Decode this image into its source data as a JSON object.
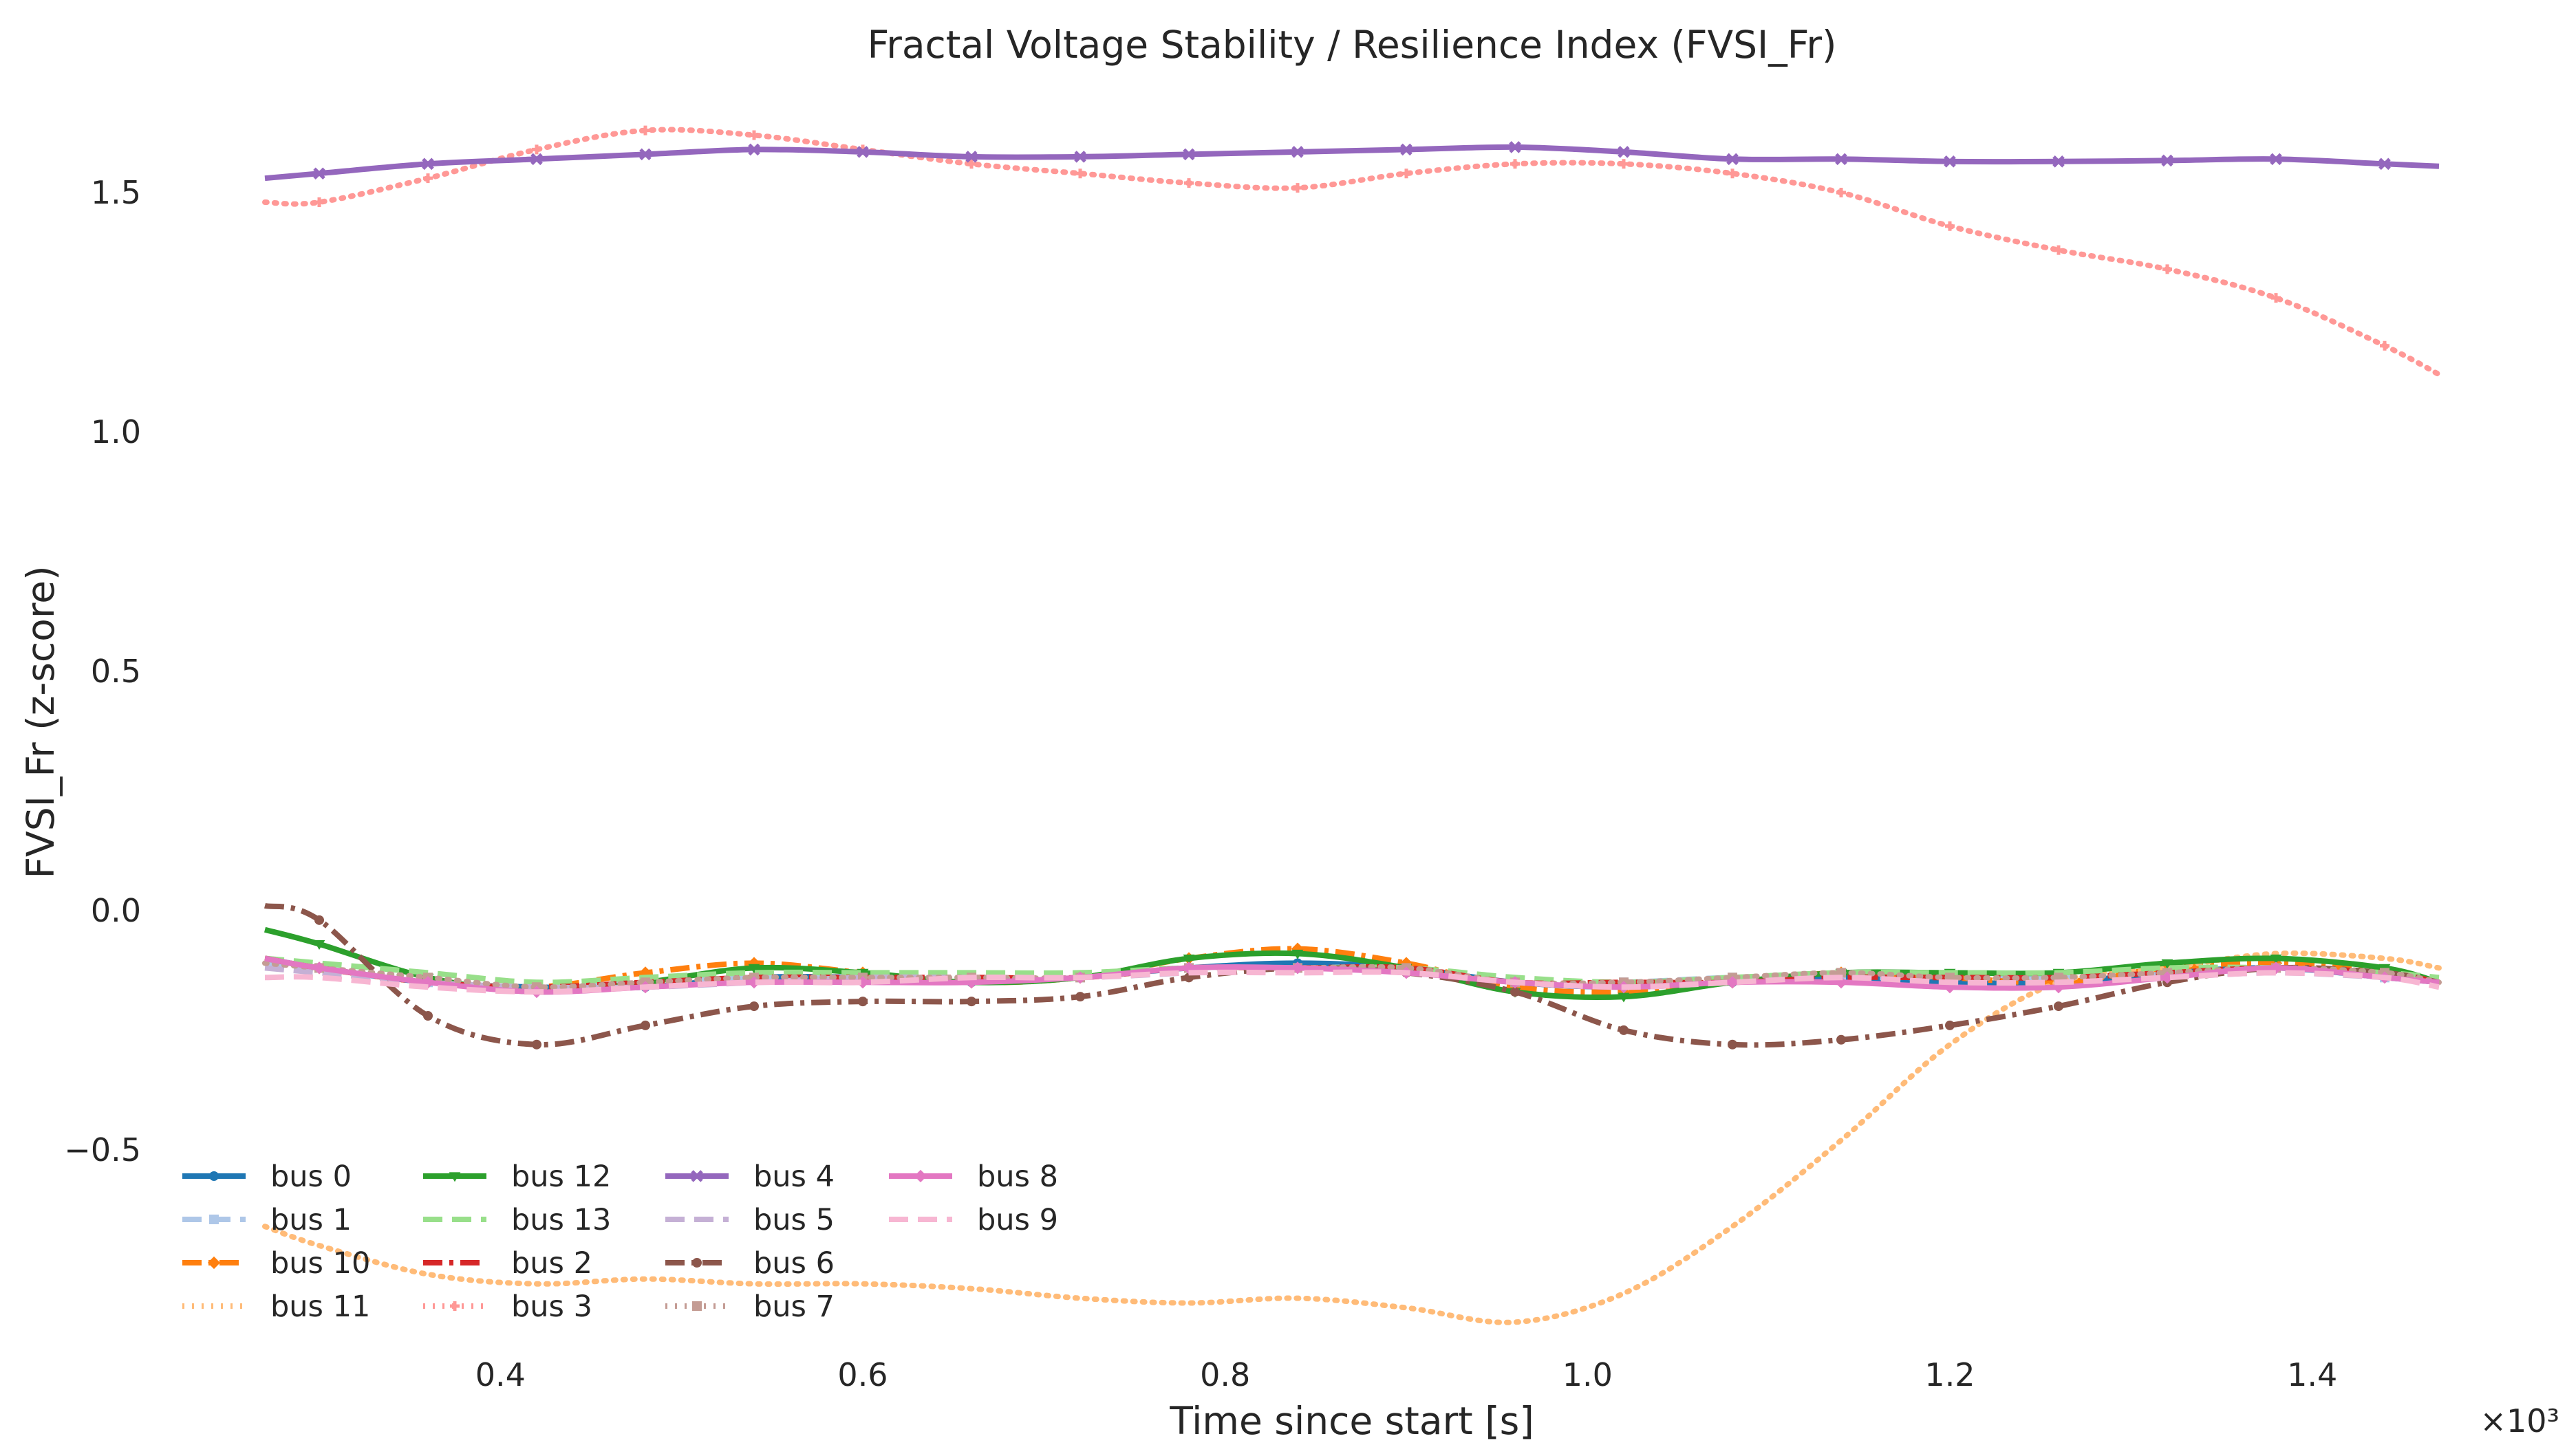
{
  "chart_data": {
    "type": "line",
    "title": "Fractal Voltage Stability / Resilience Index (FVSI_Fr)",
    "xlabel": "Time since start [s]",
    "ylabel": "FVSI_Fr (z-score)",
    "x_offset_label": "×10³",
    "x_scale_factor": 1000,
    "xlim": [
      0.27,
      1.47
    ],
    "ylim": [
      -0.95,
      1.73
    ],
    "x_ticks": [
      0.4,
      0.6,
      0.8,
      1.0,
      1.2,
      1.4
    ],
    "x_tick_labels": [
      "0.4",
      "0.6",
      "0.8",
      "1.0",
      "1.2",
      "1.4"
    ],
    "y_ticks": [
      -0.5,
      0.0,
      0.5,
      1.0,
      1.5
    ],
    "y_tick_labels": [
      "−0.5",
      "0.0",
      "0.5",
      "1.0",
      "1.5"
    ],
    "grid": false,
    "legend_position": "lower-left",
    "x": [
      0.27,
      0.3,
      0.36,
      0.42,
      0.48,
      0.54,
      0.6,
      0.66,
      0.72,
      0.78,
      0.84,
      0.9,
      0.96,
      1.02,
      1.08,
      1.14,
      1.2,
      1.26,
      1.32,
      1.38,
      1.44,
      1.47
    ],
    "series": [
      {
        "name": "bus 0",
        "color": "#1f77b4",
        "dash": "",
        "width": 8,
        "marker": "circle",
        "values": [
          -0.1,
          -0.12,
          -0.15,
          -0.16,
          -0.16,
          -0.14,
          -0.14,
          -0.15,
          -0.14,
          -0.12,
          -0.11,
          -0.12,
          -0.15,
          -0.16,
          -0.15,
          -0.14,
          -0.15,
          -0.15,
          -0.13,
          -0.12,
          -0.14,
          -0.15
        ]
      },
      {
        "name": "bus 1",
        "color": "#aec7e8",
        "dash": "28,14",
        "width": 8,
        "marker": "square",
        "values": [
          -0.11,
          -0.12,
          -0.15,
          -0.16,
          -0.15,
          -0.14,
          -0.14,
          -0.14,
          -0.14,
          -0.12,
          -0.12,
          -0.12,
          -0.15,
          -0.15,
          -0.14,
          -0.14,
          -0.14,
          -0.14,
          -0.13,
          -0.12,
          -0.14,
          -0.15
        ]
      },
      {
        "name": "bus 10",
        "color": "#ff7f0e",
        "dash": "28,10,6,10",
        "width": 8,
        "marker": "diamond",
        "values": [
          -0.1,
          -0.12,
          -0.15,
          -0.16,
          -0.13,
          -0.11,
          -0.13,
          -0.15,
          -0.14,
          -0.1,
          -0.08,
          -0.11,
          -0.16,
          -0.17,
          -0.15,
          -0.13,
          -0.14,
          -0.15,
          -0.12,
          -0.11,
          -0.13,
          -0.15
        ]
      },
      {
        "name": "bus 11",
        "color": "#ffbb78",
        "dash": "3,11",
        "width": 8,
        "marker": "none",
        "values": [
          -0.66,
          -0.7,
          -0.76,
          -0.78,
          -0.77,
          -0.78,
          -0.78,
          -0.79,
          -0.81,
          -0.82,
          -0.81,
          -0.83,
          -0.86,
          -0.8,
          -0.66,
          -0.48,
          -0.28,
          -0.15,
          -0.12,
          -0.09,
          -0.1,
          -0.12
        ]
      },
      {
        "name": "bus 12",
        "color": "#2ca02c",
        "dash": "",
        "width": 8,
        "marker": "triangle",
        "values": [
          -0.04,
          -0.07,
          -0.14,
          -0.17,
          -0.15,
          -0.12,
          -0.13,
          -0.15,
          -0.14,
          -0.1,
          -0.09,
          -0.12,
          -0.17,
          -0.18,
          -0.15,
          -0.13,
          -0.13,
          -0.13,
          -0.11,
          -0.1,
          -0.12,
          -0.15
        ]
      },
      {
        "name": "bus 13",
        "color": "#98df8a",
        "dash": "28,14",
        "width": 8,
        "marker": "none",
        "values": [
          -0.1,
          -0.11,
          -0.13,
          -0.15,
          -0.14,
          -0.13,
          -0.13,
          -0.13,
          -0.13,
          -0.12,
          -0.12,
          -0.12,
          -0.14,
          -0.15,
          -0.14,
          -0.13,
          -0.13,
          -0.13,
          -0.12,
          -0.12,
          -0.13,
          -0.14
        ]
      },
      {
        "name": "bus 2",
        "color": "#d62728",
        "dash": "28,10,6,10",
        "width": 8,
        "marker": "none",
        "values": [
          -0.1,
          -0.12,
          -0.15,
          -0.16,
          -0.15,
          -0.14,
          -0.14,
          -0.14,
          -0.14,
          -0.12,
          -0.12,
          -0.12,
          -0.15,
          -0.15,
          -0.15,
          -0.14,
          -0.14,
          -0.14,
          -0.13,
          -0.12,
          -0.13,
          -0.15
        ]
      },
      {
        "name": "bus 3",
        "color": "#ff9896",
        "dash": "3,11",
        "width": 8,
        "marker": "plus",
        "values": [
          1.48,
          1.48,
          1.53,
          1.59,
          1.63,
          1.62,
          1.59,
          1.56,
          1.54,
          1.52,
          1.51,
          1.54,
          1.56,
          1.56,
          1.54,
          1.5,
          1.43,
          1.38,
          1.34,
          1.28,
          1.18,
          1.12
        ]
      },
      {
        "name": "bus 4",
        "color": "#9467bd",
        "dash": "",
        "width": 8,
        "marker": "x",
        "values": [
          1.53,
          1.54,
          1.56,
          1.57,
          1.58,
          1.59,
          1.585,
          1.575,
          1.575,
          1.58,
          1.585,
          1.59,
          1.595,
          1.585,
          1.57,
          1.57,
          1.565,
          1.565,
          1.567,
          1.57,
          1.56,
          1.555
        ]
      },
      {
        "name": "bus 5",
        "color": "#c5b0d5",
        "dash": "28,14",
        "width": 8,
        "marker": "none",
        "values": [
          -0.12,
          -0.13,
          -0.15,
          -0.16,
          -0.16,
          -0.15,
          -0.14,
          -0.14,
          -0.14,
          -0.13,
          -0.12,
          -0.13,
          -0.15,
          -0.16,
          -0.15,
          -0.14,
          -0.15,
          -0.15,
          -0.14,
          -0.13,
          -0.14,
          -0.15
        ]
      },
      {
        "name": "bus 6",
        "color": "#8c564b",
        "dash": "28,10,6,10",
        "width": 8,
        "marker": "circle",
        "values": [
          0.01,
          -0.02,
          -0.22,
          -0.28,
          -0.24,
          -0.2,
          -0.19,
          -0.19,
          -0.18,
          -0.14,
          -0.12,
          -0.13,
          -0.17,
          -0.25,
          -0.28,
          -0.27,
          -0.24,
          -0.2,
          -0.15,
          -0.12,
          -0.13,
          -0.15
        ]
      },
      {
        "name": "bus 7",
        "color": "#c49c94",
        "dash": "3,11",
        "width": 8,
        "marker": "square",
        "values": [
          -0.11,
          -0.12,
          -0.14,
          -0.16,
          -0.15,
          -0.14,
          -0.14,
          -0.14,
          -0.14,
          -0.12,
          -0.12,
          -0.12,
          -0.15,
          -0.15,
          -0.14,
          -0.13,
          -0.14,
          -0.14,
          -0.13,
          -0.12,
          -0.13,
          -0.15
        ]
      },
      {
        "name": "bus 8",
        "color": "#e377c2",
        "dash": "",
        "width": 8,
        "marker": "diamond",
        "values": [
          -0.1,
          -0.12,
          -0.15,
          -0.17,
          -0.16,
          -0.15,
          -0.15,
          -0.15,
          -0.14,
          -0.12,
          -0.12,
          -0.13,
          -0.15,
          -0.16,
          -0.15,
          -0.15,
          -0.16,
          -0.16,
          -0.14,
          -0.12,
          -0.14,
          -0.15
        ]
      },
      {
        "name": "bus 9",
        "color": "#f7b6d2",
        "dash": "28,14",
        "width": 8,
        "marker": "none",
        "values": [
          -0.14,
          -0.14,
          -0.16,
          -0.17,
          -0.16,
          -0.15,
          -0.15,
          -0.14,
          -0.14,
          -0.13,
          -0.13,
          -0.13,
          -0.15,
          -0.16,
          -0.15,
          -0.14,
          -0.15,
          -0.15,
          -0.14,
          -0.13,
          -0.14,
          -0.16
        ]
      }
    ]
  }
}
